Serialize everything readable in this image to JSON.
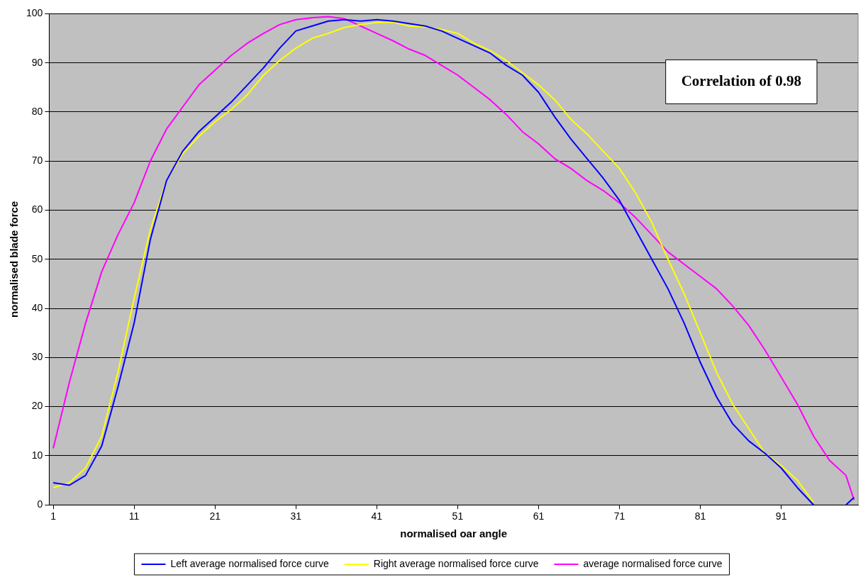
{
  "chart_data": {
    "type": "line",
    "xlabel": "normalised oar angle",
    "ylabel": "normalised blade force",
    "annotations": [
      "Correlation of 0.98"
    ],
    "x": [
      1,
      3,
      5,
      7,
      9,
      11,
      13,
      15,
      17,
      19,
      21,
      23,
      25,
      27,
      29,
      31,
      33,
      35,
      37,
      39,
      41,
      43,
      45,
      47,
      49,
      51,
      53,
      55,
      57,
      59,
      61,
      63,
      65,
      67,
      69,
      71,
      73,
      75,
      77,
      79,
      81,
      83,
      85,
      87,
      89,
      91,
      93,
      95,
      97,
      99,
      100
    ],
    "series": [
      {
        "name": "Left average normalised force curve",
        "color": "#0000ff",
        "values": [
          4.5,
          4,
          6,
          12,
          24,
          37,
          54,
          66,
          72,
          76,
          79,
          82,
          85.5,
          89,
          93,
          96.5,
          97.5,
          98.5,
          98.8,
          98.5,
          98.8,
          98.5,
          98,
          97.5,
          96.5,
          95,
          93.5,
          92,
          89.5,
          87.5,
          84,
          79,
          74.5,
          70.5,
          66.5,
          62,
          56,
          50,
          44,
          37,
          29,
          22,
          16.5,
          13,
          10.5,
          7.5,
          3.5,
          0,
          null,
          0,
          1.5
        ]
      },
      {
        "name": "Right average normalised force curve",
        "color": "#ffff00",
        "values": [
          3.5,
          4.5,
          7.5,
          14,
          27,
          42,
          56,
          66,
          71.5,
          75,
          78,
          80.5,
          83.5,
          87.5,
          90.5,
          93,
          95,
          96,
          97.2,
          97.8,
          98.2,
          98.3,
          97.5,
          97.3,
          96.8,
          96,
          94,
          92.5,
          90.5,
          88,
          85.5,
          82.5,
          78.5,
          75.5,
          72,
          68.5,
          63.5,
          57.5,
          50,
          43,
          35,
          27,
          20.5,
          15.5,
          10.5,
          8,
          5,
          0.5,
          null,
          null,
          null
        ]
      },
      {
        "name": "average normalised force curve",
        "color": "#ff00ff",
        "values": [
          11.5,
          25,
          37,
          47.5,
          55,
          61.5,
          70,
          76.5,
          81,
          85.5,
          88.5,
          91.5,
          94,
          96,
          97.8,
          98.8,
          99.2,
          99.4,
          99,
          97.5,
          96,
          94.5,
          92.8,
          91.5,
          89.5,
          87.5,
          85,
          82.5,
          79.5,
          76,
          73.5,
          70.5,
          68.5,
          66,
          64,
          61.5,
          58.5,
          55,
          51.5,
          49,
          46.5,
          44,
          40.5,
          36.5,
          31.5,
          26,
          20.5,
          14,
          9,
          6,
          1
        ]
      }
    ],
    "xlim": [
      0.5,
      100.5
    ],
    "xticks": [
      1,
      11,
      21,
      31,
      41,
      51,
      61,
      71,
      81,
      91
    ],
    "ylim": [
      0,
      100
    ],
    "yticks": [
      0,
      10,
      20,
      30,
      40,
      50,
      60,
      70,
      80,
      90,
      100
    ],
    "grid": "y",
    "legend": "bottom",
    "marker": "none",
    "line_style": "solid"
  }
}
